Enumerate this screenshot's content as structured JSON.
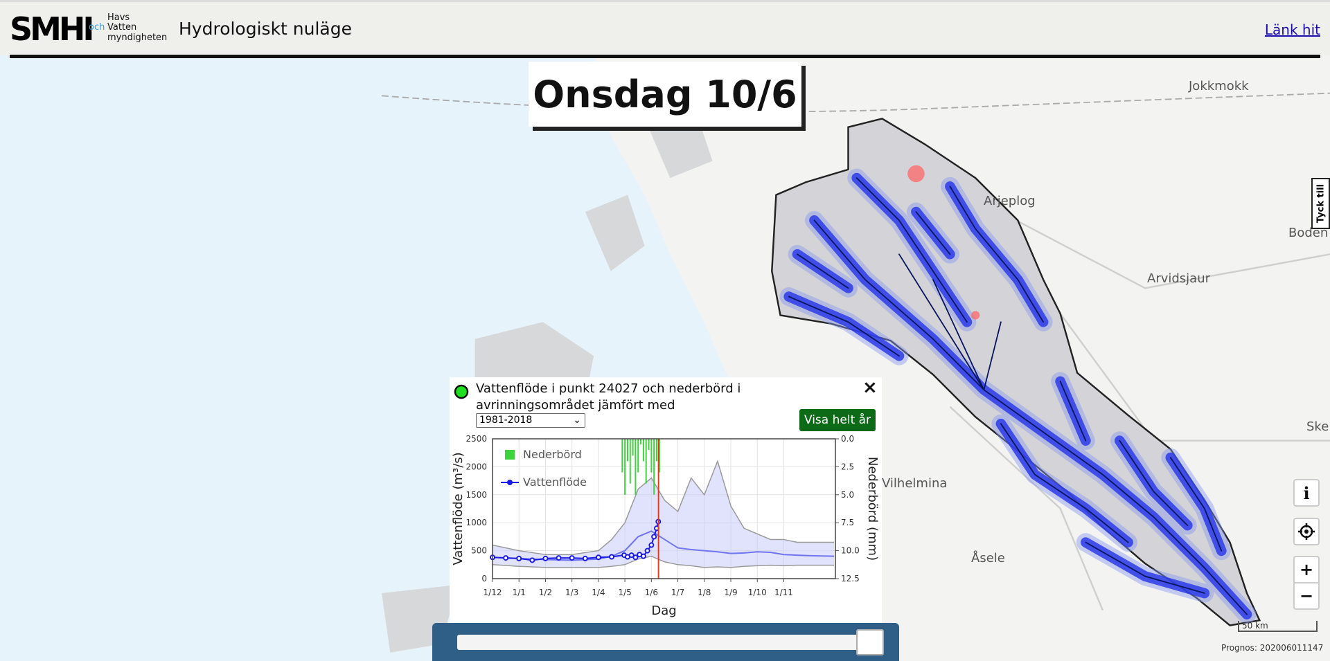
{
  "header": {
    "logo": "SMHI",
    "partner_line1": "Havs",
    "partner_och": "och",
    "partner_line2": "Vatten",
    "partner_line3": "myndigheten",
    "title": "Hydrologiskt nuläge",
    "link": "Länk hit"
  },
  "date_label": "Onsdag 10/6",
  "map": {
    "places": [
      "Jokkmokk",
      "Arjeplog",
      "Arvidsjaur",
      "Boden",
      "Vilhelmina",
      "Åsele",
      "Ske"
    ],
    "feedback": "Tyck till",
    "buttons": {
      "info": "i",
      "zoom_in": "+",
      "zoom_out": "−"
    },
    "scale": "50 km",
    "forecast": "Prognos: 202006011147"
  },
  "popup": {
    "title": "Vattenflöde i punkt 24027 och nederbörd i avrinningsområdet jämfört med",
    "period": "1981-2018",
    "button": "Visa helt år",
    "close": "×",
    "chart": {
      "type": "line",
      "xlabel": "Dag",
      "ylabel": "Vattenflöde (m³/s)",
      "y2label": "Nederbörd (mm)",
      "xlim": [
        0,
        12.95
      ],
      "xticks": [
        {
          "value": 0,
          "label": "1/12"
        },
        {
          "value": 1,
          "label": "1/1"
        },
        {
          "value": 2,
          "label": "1/2"
        },
        {
          "value": 3,
          "label": "1/3"
        },
        {
          "value": 4,
          "label": "1/4"
        },
        {
          "value": 5,
          "label": "1/5"
        },
        {
          "value": 6,
          "label": "1/6"
        },
        {
          "value": 7,
          "label": "1/7"
        },
        {
          "value": 8,
          "label": "1/8"
        },
        {
          "value": 9,
          "label": "1/9"
        },
        {
          "value": 10,
          "label": "1/10"
        },
        {
          "value": 11,
          "label": "1/11"
        }
      ],
      "ylim": [
        0,
        2500
      ],
      "yticks": [
        0,
        500,
        1000,
        1500,
        2000,
        2500
      ],
      "y2lim": [
        12.5,
        0
      ],
      "y2ticks": [
        {
          "value": 0,
          "label": "0.0"
        },
        2.5,
        {
          "value": 5,
          "label": "5.0"
        },
        7.5,
        {
          "value": 10,
          "label": "10.0"
        },
        12.5
      ],
      "grid": true,
      "today_x": 6.27,
      "today_color": "#e03a1e",
      "series": [
        {
          "name": "Nederbörd",
          "type": "bar",
          "axis": "y2",
          "color": "#3fd23f",
          "x": [
            4.9,
            5.0,
            5.1,
            5.2,
            5.3,
            5.4,
            5.5,
            5.6,
            5.7,
            5.8,
            5.9,
            6.0,
            6.1,
            6.2,
            6.3
          ],
          "values": [
            3,
            5,
            2,
            4,
            1.5,
            5,
            3,
            0.5,
            2,
            4,
            1,
            3,
            5,
            2,
            3
          ]
        },
        {
          "name": "Vattenflöde",
          "type": "line",
          "color": "#1a1ae6",
          "x": [
            0,
            0.5,
            1,
            1.5,
            2,
            2.5,
            3,
            3.5,
            4,
            4.5,
            4.97,
            5.1,
            5.25,
            5.4,
            5.55,
            5.7,
            5.85,
            6.0,
            6.1,
            6.2,
            6.26
          ],
          "values": [
            380,
            370,
            360,
            330,
            360,
            370,
            370,
            360,
            380,
            390,
            420,
            390,
            420,
            380,
            430,
            400,
            500,
            600,
            750,
            900,
            1020
          ]
        }
      ],
      "band_x": [
        0,
        1,
        2,
        3,
        4,
        4.5,
        5,
        5.5,
        6,
        6.5,
        7,
        7.5,
        8,
        8.5,
        9,
        9.5,
        10,
        10.5,
        11,
        11.5,
        12,
        12.9
      ],
      "median": {
        "color": "#6f74f0",
        "values": [
          380,
          360,
          340,
          330,
          350,
          400,
          500,
          750,
          850,
          700,
          550,
          520,
          500,
          480,
          450,
          460,
          480,
          470,
          430,
          420,
          410,
          400
        ]
      },
      "max": {
        "color": "#9a9a9a",
        "values": [
          600,
          500,
          430,
          430,
          500,
          700,
          1000,
          1600,
          1800,
          1400,
          1200,
          1800,
          1500,
          2100,
          1300,
          900,
          800,
          700,
          700,
          650,
          650,
          650
        ]
      },
      "min": {
        "color": "#9a9a9a",
        "values": [
          250,
          220,
          200,
          200,
          200,
          220,
          250,
          350,
          400,
          300,
          250,
          230,
          200,
          210,
          200,
          220,
          230,
          240,
          230,
          240,
          240,
          240
        ]
      }
    }
  }
}
